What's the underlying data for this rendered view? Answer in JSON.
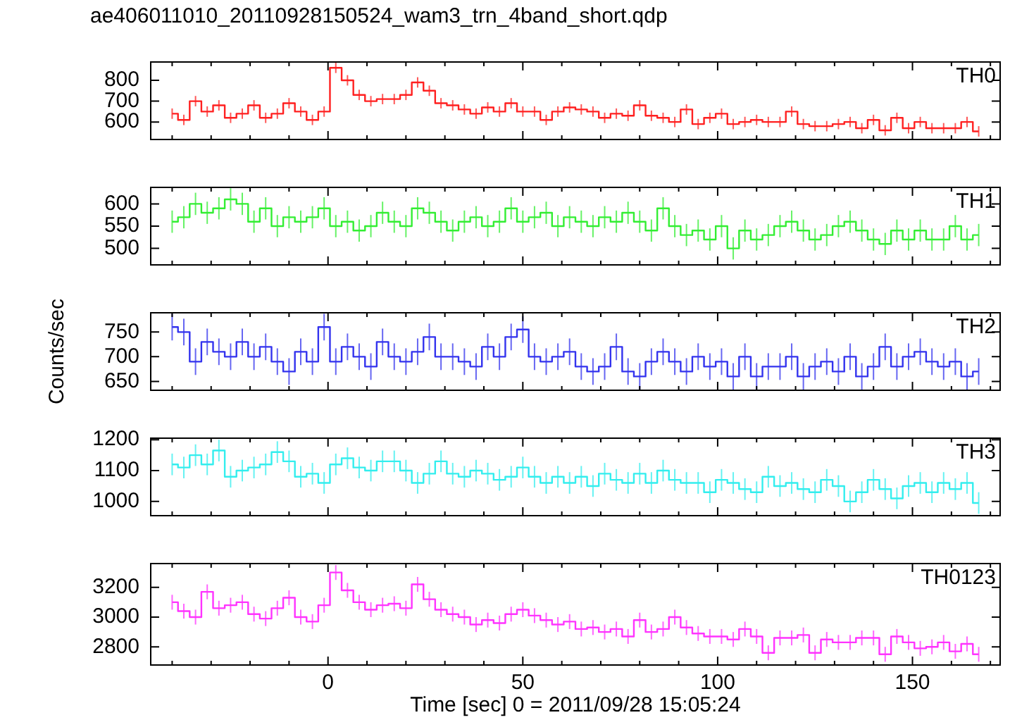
{
  "chart_data": [
    {
      "type": "step",
      "title": "ae406011010_20110928150524_wam3_trn_4band_short.qdp",
      "annotations": [
        "TH0"
      ],
      "marker": "none",
      "tick_labels": "y",
      "x": [
        -40,
        -37,
        -34,
        -31,
        -28,
        -25,
        -22,
        -19,
        -16,
        -13,
        -10,
        -7,
        -4,
        -1,
        2,
        5,
        8,
        11,
        14,
        17,
        20,
        23,
        26,
        29,
        32,
        35,
        38,
        41,
        44,
        47,
        50,
        53,
        56,
        59,
        62,
        65,
        68,
        71,
        74,
        77,
        80,
        83,
        86,
        89,
        92,
        95,
        98,
        101,
        104,
        107,
        110,
        113,
        116,
        119,
        122,
        125,
        128,
        131,
        134,
        137,
        140,
        143,
        146,
        149,
        152,
        155,
        158,
        161,
        164,
        167
      ],
      "xlim": [
        -45.5,
        172.5
      ],
      "xticks": [
        {
          "value": -40,
          "label": null
        },
        {
          "value": -30,
          "label": null
        },
        {
          "value": -20,
          "label": null
        },
        {
          "value": -10,
          "label": null
        },
        0,
        {
          "value": 10,
          "label": null
        },
        {
          "value": 20,
          "label": null
        },
        {
          "value": 30,
          "label": null
        },
        {
          "value": 40,
          "label": null
        },
        50,
        {
          "value": 60,
          "label": null
        },
        {
          "value": 70,
          "label": null
        },
        {
          "value": 80,
          "label": null
        },
        {
          "value": 90,
          "label": null
        },
        100,
        {
          "value": 110,
          "label": null
        },
        {
          "value": 120,
          "label": null
        },
        {
          "value": 130,
          "label": null
        },
        {
          "value": 140,
          "label": null
        },
        150,
        {
          "value": 160,
          "label": null
        },
        {
          "value": 170,
          "label": null
        }
      ],
      "ylim": [
        516,
        888
      ],
      "yticks": [
        600,
        700,
        800
      ],
      "series": [
        {
          "color": "#ff2020",
          "values": [
            640,
            610,
            700,
            650,
            680,
            620,
            640,
            680,
            620,
            640,
            690,
            650,
            610,
            650,
            860,
            800,
            730,
            700,
            710,
            710,
            730,
            790,
            750,
            690,
            680,
            660,
            640,
            670,
            650,
            690,
            650,
            650,
            610,
            650,
            670,
            660,
            650,
            620,
            640,
            630,
            680,
            630,
            620,
            600,
            660,
            590,
            620,
            640,
            590,
            600,
            610,
            600,
            600,
            650,
            590,
            580,
            580,
            590,
            600,
            570,
            610,
            560,
            620,
            570,
            600,
            570,
            570,
            570,
            600,
            555
          ],
          "errors": [
            25,
            25,
            25,
            25,
            25,
            25,
            25,
            25,
            25,
            25,
            25,
            25,
            25,
            25,
            25,
            25,
            25,
            25,
            25,
            25,
            25,
            25,
            25,
            25,
            25,
            25,
            25,
            25,
            25,
            25,
            25,
            25,
            25,
            25,
            25,
            25,
            25,
            25,
            25,
            25,
            25,
            25,
            25,
            25,
            25,
            25,
            25,
            25,
            25,
            25,
            25,
            25,
            25,
            25,
            25,
            25,
            25,
            25,
            25,
            25,
            25,
            25,
            25,
            25,
            25,
            25,
            25,
            25,
            25,
            25
          ]
        }
      ]
    },
    {
      "type": "step",
      "annotations": [
        "TH1"
      ],
      "marker": "none",
      "tick_labels": "y",
      "x": [
        -40,
        -37,
        -34,
        -31,
        -28,
        -25,
        -22,
        -19,
        -16,
        -13,
        -10,
        -7,
        -4,
        -1,
        2,
        5,
        8,
        11,
        14,
        17,
        20,
        23,
        26,
        29,
        32,
        35,
        38,
        41,
        44,
        47,
        50,
        53,
        56,
        59,
        62,
        65,
        68,
        71,
        74,
        77,
        80,
        83,
        86,
        89,
        92,
        95,
        98,
        101,
        104,
        107,
        110,
        113,
        116,
        119,
        122,
        125,
        128,
        131,
        134,
        137,
        140,
        143,
        146,
        149,
        152,
        155,
        158,
        161,
        164,
        167
      ],
      "xlim": [
        -45.5,
        172.5
      ],
      "xticks": [
        {
          "value": -40,
          "label": null
        },
        {
          "value": -30,
          "label": null
        },
        {
          "value": -20,
          "label": null
        },
        {
          "value": -10,
          "label": null
        },
        0,
        {
          "value": 10,
          "label": null
        },
        {
          "value": 20,
          "label": null
        },
        {
          "value": 30,
          "label": null
        },
        {
          "value": 40,
          "label": null
        },
        50,
        {
          "value": 60,
          "label": null
        },
        {
          "value": 70,
          "label": null
        },
        {
          "value": 80,
          "label": null
        },
        {
          "value": 90,
          "label": null
        },
        100,
        {
          "value": 110,
          "label": null
        },
        {
          "value": 120,
          "label": null
        },
        {
          "value": 130,
          "label": null
        },
        {
          "value": 140,
          "label": null
        },
        150,
        {
          "value": 160,
          "label": null
        },
        {
          "value": 170,
          "label": null
        }
      ],
      "ylim": [
        463,
        637
      ],
      "yticks": [
        500,
        550,
        600
      ],
      "series": [
        {
          "color": "#33ee33",
          "values": [
            560,
            570,
            600,
            580,
            590,
            610,
            600,
            560,
            590,
            550,
            570,
            560,
            570,
            590,
            550,
            560,
            540,
            550,
            580,
            560,
            550,
            590,
            580,
            560,
            540,
            560,
            570,
            550,
            560,
            590,
            560,
            570,
            580,
            550,
            570,
            560,
            550,
            570,
            560,
            580,
            560,
            540,
            590,
            550,
            530,
            540,
            520,
            550,
            500,
            540,
            520,
            530,
            550,
            560,
            540,
            520,
            530,
            550,
            560,
            540,
            520,
            510,
            540,
            520,
            540,
            520,
            520,
            550,
            520,
            530
          ],
          "errors": [
            25,
            25,
            25,
            25,
            25,
            25,
            25,
            25,
            25,
            25,
            25,
            25,
            25,
            25,
            25,
            25,
            25,
            25,
            25,
            25,
            25,
            25,
            25,
            25,
            25,
            25,
            25,
            25,
            25,
            25,
            25,
            25,
            25,
            25,
            25,
            25,
            25,
            25,
            25,
            25,
            25,
            25,
            25,
            25,
            25,
            25,
            25,
            25,
            25,
            25,
            25,
            25,
            25,
            25,
            25,
            25,
            25,
            25,
            25,
            25,
            25,
            25,
            25,
            25,
            25,
            25,
            25,
            25,
            25,
            25
          ]
        }
      ]
    },
    {
      "type": "step",
      "annotations": [
        "TH2"
      ],
      "ylabel": "Counts/sec",
      "marker": "none",
      "tick_labels": "y",
      "x": [
        -40,
        -37,
        -34,
        -31,
        -28,
        -25,
        -22,
        -19,
        -16,
        -13,
        -10,
        -7,
        -4,
        -1,
        2,
        5,
        8,
        11,
        14,
        17,
        20,
        23,
        26,
        29,
        32,
        35,
        38,
        41,
        44,
        47,
        50,
        53,
        56,
        59,
        62,
        65,
        68,
        71,
        74,
        77,
        80,
        83,
        86,
        89,
        92,
        95,
        98,
        101,
        104,
        107,
        110,
        113,
        116,
        119,
        122,
        125,
        128,
        131,
        134,
        137,
        140,
        143,
        146,
        149,
        152,
        155,
        158,
        161,
        164,
        167
      ],
      "xlim": [
        -45.5,
        172.5
      ],
      "xticks": [
        {
          "value": -40,
          "label": null
        },
        {
          "value": -30,
          "label": null
        },
        {
          "value": -20,
          "label": null
        },
        {
          "value": -10,
          "label": null
        },
        0,
        {
          "value": 10,
          "label": null
        },
        {
          "value": 20,
          "label": null
        },
        {
          "value": 30,
          "label": null
        },
        {
          "value": 40,
          "label": null
        },
        50,
        {
          "value": 60,
          "label": null
        },
        {
          "value": 70,
          "label": null
        },
        {
          "value": 80,
          "label": null
        },
        {
          "value": 90,
          "label": null
        },
        100,
        {
          "value": 110,
          "label": null
        },
        {
          "value": 120,
          "label": null
        },
        {
          "value": 130,
          "label": null
        },
        {
          "value": 140,
          "label": null
        },
        150,
        {
          "value": 160,
          "label": null
        },
        {
          "value": 170,
          "label": null
        }
      ],
      "ylim": [
        632,
        789
      ],
      "yticks": [
        650,
        700,
        750
      ],
      "series": [
        {
          "color": "#3333ee",
          "values": [
            760,
            750,
            690,
            730,
            710,
            700,
            730,
            700,
            720,
            690,
            670,
            710,
            690,
            760,
            690,
            720,
            700,
            680,
            730,
            700,
            690,
            710,
            740,
            700,
            700,
            690,
            680,
            720,
            700,
            740,
            755,
            700,
            690,
            700,
            710,
            680,
            670,
            680,
            720,
            670,
            660,
            690,
            710,
            690,
            670,
            700,
            680,
            690,
            660,
            700,
            660,
            680,
            680,
            700,
            660,
            680,
            690,
            670,
            700,
            660,
            680,
            720,
            680,
            700,
            710,
            690,
            680,
            690,
            660,
            670
          ],
          "errors": [
            27,
            27,
            27,
            27,
            27,
            27,
            27,
            27,
            27,
            27,
            27,
            27,
            27,
            27,
            27,
            27,
            27,
            27,
            27,
            27,
            27,
            27,
            27,
            27,
            27,
            27,
            27,
            27,
            27,
            27,
            27,
            27,
            27,
            27,
            27,
            27,
            27,
            27,
            27,
            27,
            27,
            27,
            27,
            27,
            27,
            27,
            27,
            27,
            27,
            27,
            27,
            27,
            27,
            27,
            27,
            27,
            27,
            27,
            27,
            27,
            27,
            27,
            27,
            27,
            27,
            27,
            27,
            27,
            27,
            27
          ]
        }
      ]
    },
    {
      "type": "step",
      "annotations": [
        "TH3"
      ],
      "marker": "none",
      "tick_labels": "y",
      "x": [
        -40,
        -37,
        -34,
        -31,
        -28,
        -25,
        -22,
        -19,
        -16,
        -13,
        -10,
        -7,
        -4,
        -1,
        2,
        5,
        8,
        11,
        14,
        17,
        20,
        23,
        26,
        29,
        32,
        35,
        38,
        41,
        44,
        47,
        50,
        53,
        56,
        59,
        62,
        65,
        68,
        71,
        74,
        77,
        80,
        83,
        86,
        89,
        92,
        95,
        98,
        101,
        104,
        107,
        110,
        113,
        116,
        119,
        122,
        125,
        128,
        131,
        134,
        137,
        140,
        143,
        146,
        149,
        152,
        155,
        158,
        161,
        164,
        167
      ],
      "xlim": [
        -45.5,
        172.5
      ],
      "xticks": [
        {
          "value": -40,
          "label": null
        },
        {
          "value": -30,
          "label": null
        },
        {
          "value": -20,
          "label": null
        },
        {
          "value": -10,
          "label": null
        },
        0,
        {
          "value": 10,
          "label": null
        },
        {
          "value": 20,
          "label": null
        },
        {
          "value": 30,
          "label": null
        },
        {
          "value": 40,
          "label": null
        },
        50,
        {
          "value": 60,
          "label": null
        },
        {
          "value": 70,
          "label": null
        },
        {
          "value": 80,
          "label": null
        },
        {
          "value": 90,
          "label": null
        },
        100,
        {
          "value": 110,
          "label": null
        },
        {
          "value": 120,
          "label": null
        },
        {
          "value": 130,
          "label": null
        },
        {
          "value": 140,
          "label": null
        },
        150,
        {
          "value": 160,
          "label": null
        },
        {
          "value": 170,
          "label": null
        }
      ],
      "ylim": [
        954,
        1205
      ],
      "yticks": [
        1000,
        1100,
        1200
      ],
      "series": [
        {
          "color": "#33eeee",
          "values": [
            1120,
            1110,
            1150,
            1120,
            1165,
            1080,
            1100,
            1110,
            1120,
            1160,
            1130,
            1080,
            1090,
            1060,
            1120,
            1140,
            1110,
            1100,
            1130,
            1130,
            1100,
            1060,
            1090,
            1130,
            1090,
            1080,
            1100,
            1090,
            1070,
            1080,
            1110,
            1080,
            1060,
            1080,
            1060,
            1080,
            1050,
            1090,
            1070,
            1060,
            1090,
            1060,
            1100,
            1070,
            1060,
            1060,
            1030,
            1070,
            1060,
            1040,
            1030,
            1080,
            1050,
            1060,
            1040,
            1030,
            1070,
            1050,
            1000,
            1030,
            1070,
            1040,
            1010,
            1050,
            1060,
            1030,
            1060,
            1040,
            1060,
            995
          ],
          "errors": [
            35,
            35,
            35,
            35,
            35,
            35,
            35,
            35,
            35,
            35,
            35,
            35,
            35,
            35,
            35,
            35,
            35,
            35,
            35,
            35,
            35,
            35,
            35,
            35,
            35,
            35,
            35,
            35,
            35,
            35,
            35,
            35,
            35,
            35,
            35,
            35,
            35,
            35,
            35,
            35,
            35,
            35,
            35,
            35,
            35,
            35,
            35,
            35,
            35,
            35,
            35,
            35,
            35,
            35,
            35,
            35,
            35,
            35,
            35,
            35,
            35,
            35,
            35,
            35,
            35,
            35,
            35,
            35,
            35,
            35
          ]
        }
      ]
    },
    {
      "type": "step",
      "annotations": [
        "TH0123"
      ],
      "xlabel": "Time [sec] 0 = 2011/09/28 15:05:24",
      "marker": "none",
      "x": [
        -40,
        -37,
        -34,
        -31,
        -28,
        -25,
        -22,
        -19,
        -16,
        -13,
        -10,
        -7,
        -4,
        -1,
        2,
        5,
        8,
        11,
        14,
        17,
        20,
        23,
        26,
        29,
        32,
        35,
        38,
        41,
        44,
        47,
        50,
        53,
        56,
        59,
        62,
        65,
        68,
        71,
        74,
        77,
        80,
        83,
        86,
        89,
        92,
        95,
        98,
        101,
        104,
        107,
        110,
        113,
        116,
        119,
        122,
        125,
        128,
        131,
        134,
        137,
        140,
        143,
        146,
        149,
        152,
        155,
        158,
        161,
        164,
        167
      ],
      "xlim": [
        -45.5,
        172.5
      ],
      "xticks": [
        {
          "value": -40,
          "label": null
        },
        {
          "value": -30,
          "label": null
        },
        {
          "value": -20,
          "label": null
        },
        {
          "value": -10,
          "label": null
        },
        0,
        {
          "value": 10,
          "label": null
        },
        {
          "value": 20,
          "label": null
        },
        {
          "value": 30,
          "label": null
        },
        {
          "value": 40,
          "label": null
        },
        50,
        {
          "value": 60,
          "label": null
        },
        {
          "value": 70,
          "label": null
        },
        {
          "value": 80,
          "label": null
        },
        {
          "value": 90,
          "label": null
        },
        100,
        {
          "value": 110,
          "label": null
        },
        {
          "value": 120,
          "label": null
        },
        {
          "value": 130,
          "label": null
        },
        {
          "value": 140,
          "label": null
        },
        150,
        {
          "value": 160,
          "label": null
        },
        {
          "value": 170,
          "label": null
        }
      ],
      "ylim": [
        2678,
        3360
      ],
      "yticks": [
        2800,
        3000,
        3200
      ],
      "series": [
        {
          "color": "#ff33ff",
          "values": [
            3100,
            3040,
            3000,
            3170,
            3060,
            3080,
            3100,
            3020,
            2990,
            3060,
            3130,
            3000,
            2970,
            3080,
            3300,
            3180,
            3100,
            3050,
            3080,
            3090,
            3060,
            3220,
            3120,
            3050,
            3020,
            3000,
            2950,
            2980,
            2960,
            3020,
            3050,
            3010,
            2980,
            2950,
            2970,
            2920,
            2930,
            2900,
            2920,
            2870,
            2980,
            2900,
            2920,
            3000,
            2930,
            2890,
            2870,
            2870,
            2850,
            2920,
            2870,
            2760,
            2860,
            2860,
            2880,
            2760,
            2850,
            2830,
            2830,
            2860,
            2860,
            2750,
            2870,
            2830,
            2790,
            2800,
            2830,
            2770,
            2820,
            2750
          ],
          "errors": [
            50,
            50,
            50,
            50,
            50,
            50,
            50,
            50,
            50,
            50,
            50,
            50,
            50,
            50,
            50,
            50,
            50,
            50,
            50,
            50,
            50,
            50,
            50,
            50,
            50,
            50,
            50,
            50,
            50,
            50,
            50,
            50,
            50,
            50,
            50,
            50,
            50,
            50,
            50,
            50,
            50,
            50,
            50,
            50,
            50,
            50,
            50,
            50,
            50,
            50,
            50,
            50,
            50,
            50,
            50,
            50,
            50,
            50,
            50,
            50,
            50,
            50,
            50,
            50,
            50,
            50,
            50,
            50,
            50,
            50
          ]
        }
      ]
    }
  ]
}
